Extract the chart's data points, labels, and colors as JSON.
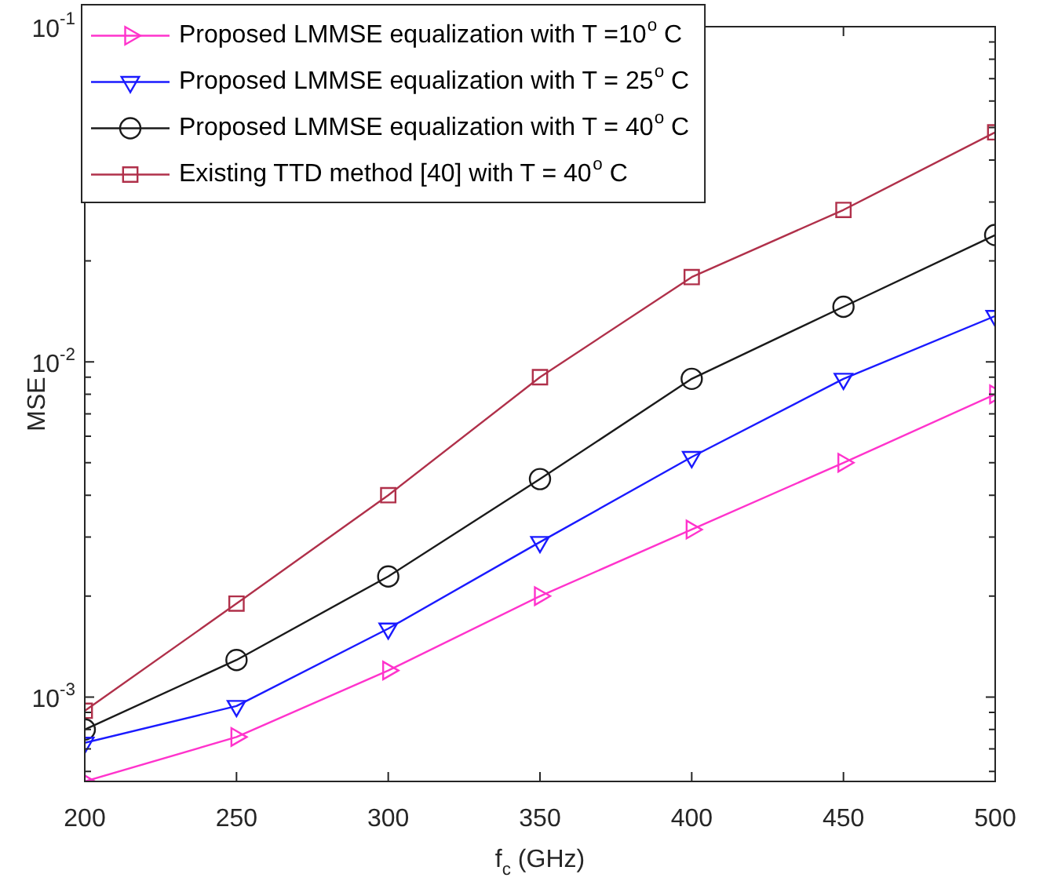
{
  "chart_data": {
    "type": "line",
    "xlabel": "f$_{c}$ (GHz)",
    "ylabel": "MSE",
    "x": [
      200,
      250,
      300,
      350,
      400,
      450,
      500
    ],
    "xlim": [
      200,
      500
    ],
    "xticks": [
      200,
      250,
      300,
      350,
      400,
      450,
      500
    ],
    "log": "y",
    "ylim": [
      0.00056,
      0.1
    ],
    "yticks": [
      {
        "value": 0.0006,
        "label": null
      },
      {
        "value": 0.0007,
        "label": null
      },
      {
        "value": 0.0008,
        "label": null
      },
      {
        "value": 0.0009,
        "label": null
      },
      {
        "value": 0.001,
        "label": "10$^{-3}$"
      },
      {
        "value": 0.002,
        "label": null
      },
      {
        "value": 0.003,
        "label": null
      },
      {
        "value": 0.004,
        "label": null
      },
      {
        "value": 0.005,
        "label": null
      },
      {
        "value": 0.006,
        "label": null
      },
      {
        "value": 0.007,
        "label": null
      },
      {
        "value": 0.008,
        "label": null
      },
      {
        "value": 0.009,
        "label": null
      },
      {
        "value": 0.01,
        "label": "10$^{-2}$"
      },
      {
        "value": 0.02,
        "label": null
      },
      {
        "value": 0.03,
        "label": null
      },
      {
        "value": 0.04,
        "label": null
      },
      {
        "value": 0.05,
        "label": null
      },
      {
        "value": 0.06,
        "label": null
      },
      {
        "value": 0.07,
        "label": null
      },
      {
        "value": 0.08,
        "label": null
      },
      {
        "value": 0.09,
        "label": null
      },
      {
        "value": 0.1,
        "label": "10$^{-1}$"
      }
    ],
    "grid": false,
    "legend": "top left",
    "line_style": "solid",
    "series": [
      {
        "name": "Proposed LMMSE equalization with T =10$^{o}$ C",
        "color": "#ff33cc",
        "marker": "triangle",
        "values": [
          0.00056,
          0.00076,
          0.0012,
          0.002,
          0.00316,
          0.005,
          0.008
        ]
      },
      {
        "name": "Proposed LMMSE equalization with T = 25$^{o}$ C",
        "color": "#1a1aff",
        "marker": "triangle",
        "values": [
          0.00073,
          0.00094,
          0.0016,
          0.0029,
          0.0052,
          0.0089,
          0.0137
        ]
      },
      {
        "name": "Proposed LMMSE equalization with T = 40$^{o}$ C",
        "color": "#1a1a1a",
        "marker": "circle",
        "values": [
          0.0008,
          0.00129,
          0.00229,
          0.00447,
          0.0089,
          0.0146,
          0.0239
        ]
      },
      {
        "name": "Existing TTD method [40] with T = 40$^{o}$ C",
        "color": "#b0304a",
        "marker": "square",
        "values": [
          0.00091,
          0.0019,
          0.004,
          0.009,
          0.0179,
          0.0284,
          0.0484
        ]
      }
    ]
  }
}
